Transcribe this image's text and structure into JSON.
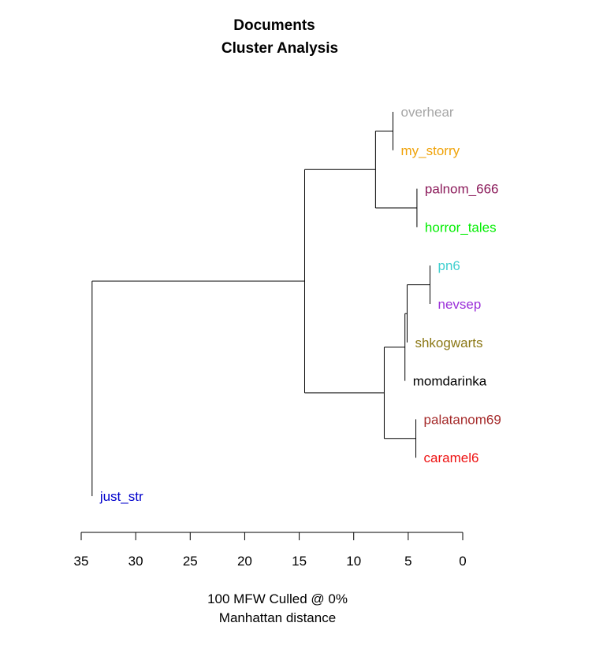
{
  "chart_data": {
    "type": "dendrogram",
    "title": "Documents",
    "subtitle": "Cluster Analysis",
    "xlabel_line1": "100 MFW  Culled @ 0%",
    "xlabel_line2": "Manhattan distance",
    "xlim": [
      35,
      0
    ],
    "ticks": [
      35,
      30,
      25,
      20,
      15,
      10,
      5,
      0
    ],
    "tick_labels": [
      "35",
      "30",
      "25",
      "20",
      "15",
      "10",
      "5",
      "0"
    ],
    "leaves": [
      {
        "name": "overhear",
        "color": "#a6a6a6"
      },
      {
        "name": "my_storry",
        "color": "#f0a30a"
      },
      {
        "name": "palnom_666",
        "color": "#8b1a5a"
      },
      {
        "name": "horror_tales",
        "color": "#00ee00"
      },
      {
        "name": "pn6",
        "color": "#3fcfcf"
      },
      {
        "name": "nevsep",
        "color": "#9b30d9"
      },
      {
        "name": "shkogwarts",
        "color": "#8b7714"
      },
      {
        "name": "momdarinka",
        "color": "#000000"
      },
      {
        "name": "palatanom69",
        "color": "#a52a2a"
      },
      {
        "name": "caramel6",
        "color": "#ee1111"
      },
      {
        "name": "just_str",
        "color": "#0000cc"
      }
    ],
    "merges": [
      {
        "id": "m1",
        "left": "L0",
        "right": "L1",
        "height": 6.4
      },
      {
        "id": "m2",
        "left": "L2",
        "right": "L3",
        "height": 4.2
      },
      {
        "id": "m3",
        "left": "m1",
        "right": "m2",
        "height": 8.0
      },
      {
        "id": "m4",
        "left": "L4",
        "right": "L5",
        "height": 3.0
      },
      {
        "id": "m5",
        "left": "m4",
        "right": "L6",
        "height": 5.1
      },
      {
        "id": "m6",
        "left": "m5",
        "right": "L7",
        "height": 5.3
      },
      {
        "id": "m7",
        "left": "L8",
        "right": "L9",
        "height": 4.3
      },
      {
        "id": "m8",
        "left": "m6",
        "right": "m7",
        "height": 7.2
      },
      {
        "id": "m9",
        "left": "m3",
        "right": "m8",
        "height": 14.5
      },
      {
        "id": "m10",
        "left": "m9",
        "right": "L10",
        "height": 34.0
      }
    ]
  }
}
